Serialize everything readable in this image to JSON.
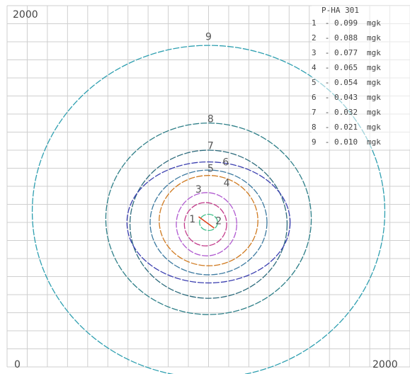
{
  "chart_data": {
    "type": "contour",
    "title": "",
    "xlim": [
      0,
      2000
    ],
    "ylim": [
      0,
      2000
    ],
    "grid": true,
    "corner_labels": {
      "y_max": "2000",
      "x_min": "0",
      "x_max": "2000"
    },
    "legend": {
      "title": "P-HA 301",
      "placement": "top-right",
      "entries": [
        {
          "level": "1",
          "sep": "-",
          "value": "0.099",
          "unit": "mgk"
        },
        {
          "level": "2",
          "sep": "-",
          "value": "0.088",
          "unit": "mgk"
        },
        {
          "level": "3",
          "sep": "-",
          "value": "0.077",
          "unit": "mgk"
        },
        {
          "level": "4",
          "sep": "-",
          "value": "0.065",
          "unit": "mgk"
        },
        {
          "level": "5",
          "sep": "-",
          "value": "0.054",
          "unit": "mgk"
        },
        {
          "level": "6",
          "sep": "-",
          "value": "0.043",
          "unit": "mgk"
        },
        {
          "level": "7",
          "sep": "-",
          "value": "0.032",
          "unit": "mgk"
        },
        {
          "level": "8",
          "sep": "-",
          "value": "0.021",
          "unit": "mgk"
        },
        {
          "level": "9",
          "sep": "-",
          "value": "0.010",
          "unit": "mgk"
        }
      ]
    },
    "source": {
      "x": 1000,
      "y": 800
    },
    "contours": [
      {
        "label": "9",
        "color": "#2e9fb0",
        "cx": 1000,
        "cy": 860,
        "rx": 875,
        "ry": 920,
        "label_at": [
          1000,
          1810
        ]
      },
      {
        "label": "8",
        "color": "#2e7f88",
        "cx": 1000,
        "cy": 820,
        "rx": 510,
        "ry": 530,
        "label_at": [
          1010,
          1355
        ]
      },
      {
        "label": "7",
        "color": "#2d6b7c",
        "cx": 1000,
        "cy": 790,
        "rx": 390,
        "ry": 410,
        "label_at": [
          1010,
          1205
        ]
      },
      {
        "label": "6",
        "color": "#3b3fb0",
        "cx": 1000,
        "cy": 800,
        "rx": 405,
        "ry": 335,
        "label_at": [
          1085,
          1115
        ]
      },
      {
        "label": "5",
        "color": "#3d7aa0",
        "cx": 1000,
        "cy": 800,
        "rx": 290,
        "ry": 290,
        "label_at": [
          1010,
          1080
        ]
      },
      {
        "label": "4",
        "color": "#d07a20",
        "cx": 1000,
        "cy": 810,
        "rx": 245,
        "ry": 250,
        "label_at": [
          1090,
          1000
        ]
      },
      {
        "label": "3",
        "color": "#b05ad0",
        "cx": 990,
        "cy": 790,
        "rx": 150,
        "ry": 175,
        "label_at": [
          950,
          965
        ]
      },
      {
        "label": "1",
        "color": "#c23a8a",
        "cx": 985,
        "cy": 790,
        "rx": 105,
        "ry": 120,
        "label_at": [
          920,
          800
        ]
      },
      {
        "label": "2",
        "color": "#3fbf8a",
        "cx": 1000,
        "cy": 800,
        "rx": 45,
        "ry": 45,
        "label_at": [
          1050,
          790
        ]
      }
    ]
  }
}
